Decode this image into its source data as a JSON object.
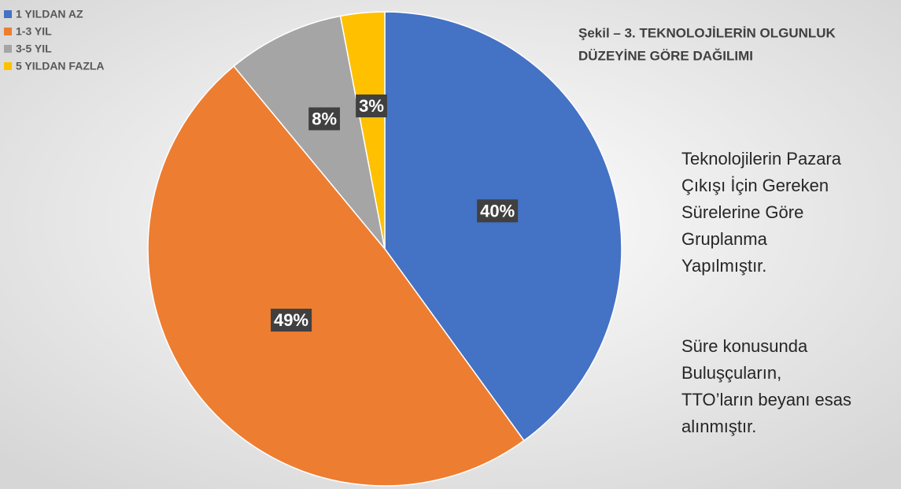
{
  "chart_data": {
    "type": "pie",
    "title": [
      "Şekil – 3. TEKNOLOJİLERİN OLGUNLUK",
      "DÜZEYİNE GÖRE DAĞILIMI"
    ],
    "categories": [
      "1 YILDAN AZ",
      "1-3 YIL",
      "3-5 YIL",
      "5 YILDAN FAZLA"
    ],
    "values": [
      40,
      49,
      8,
      3
    ],
    "value_labels": [
      "40%",
      "49%",
      "8%",
      "3%"
    ],
    "colors": [
      "#4472c4",
      "#ed7d31",
      "#a5a5a5",
      "#ffc000"
    ],
    "legend": "top-left",
    "annotations": [
      [
        "Teknolojilerin Pazara",
        "Çıkışı İçin Gereken",
        "Sürelerine Göre",
        "Gruplanma",
        "Yapılmıştır."
      ],
      [
        "Süre konusunda",
        "Buluşçuların,",
        "TTO’ların beyanı esas",
        "alınmıştır."
      ]
    ]
  }
}
